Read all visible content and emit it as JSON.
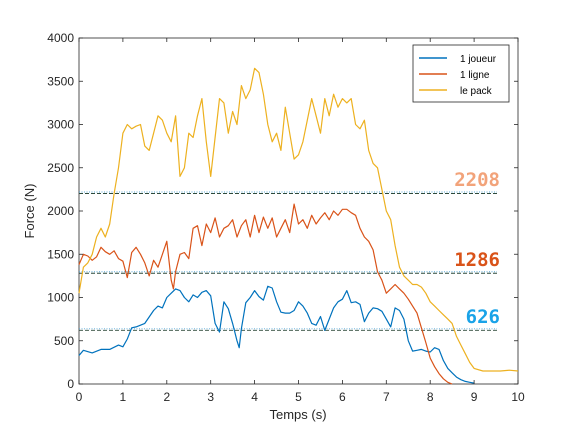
{
  "chart_data": {
    "type": "line",
    "xlabel": "Temps (s)",
    "ylabel": "Force (N)",
    "xlim": [
      0,
      10
    ],
    "ylim": [
      0,
      4000
    ],
    "xticks": [
      0,
      1,
      2,
      3,
      4,
      5,
      6,
      7,
      8,
      9,
      10
    ],
    "yticks": [
      0,
      500,
      1000,
      1500,
      2000,
      2500,
      3000,
      3500,
      4000
    ],
    "grid": false,
    "legend_position": "top-right",
    "series": [
      {
        "name": "1 joueur",
        "color": "#0072BD",
        "x": [
          0.0,
          0.1,
          0.3,
          0.5,
          0.7,
          0.9,
          1.0,
          1.1,
          1.2,
          1.3,
          1.5,
          1.7,
          1.8,
          1.9,
          2.0,
          2.1,
          2.2,
          2.3,
          2.4,
          2.5,
          2.6,
          2.7,
          2.8,
          2.9,
          3.0,
          3.1,
          3.2,
          3.3,
          3.4,
          3.5,
          3.6,
          3.65,
          3.7,
          3.8,
          3.9,
          4.0,
          4.1,
          4.2,
          4.3,
          4.4,
          4.5,
          4.6,
          4.7,
          4.8,
          4.9,
          5.0,
          5.1,
          5.2,
          5.3,
          5.4,
          5.5,
          5.6,
          5.7,
          5.8,
          5.9,
          6.0,
          6.1,
          6.2,
          6.3,
          6.4,
          6.5,
          6.6,
          6.7,
          6.8,
          6.9,
          7.0,
          7.1,
          7.2,
          7.3,
          7.4,
          7.5,
          7.6,
          7.7,
          7.8,
          7.9,
          8.0,
          8.1,
          8.2,
          8.3,
          8.4,
          8.5,
          8.6,
          8.7,
          8.8,
          8.9,
          9.0
        ],
        "y": [
          330,
          390,
          360,
          400,
          400,
          450,
          430,
          520,
          650,
          660,
          700,
          850,
          900,
          880,
          1000,
          1050,
          1100,
          1080,
          1000,
          950,
          1030,
          1000,
          1060,
          1080,
          1020,
          700,
          600,
          950,
          870,
          700,
          500,
          420,
          640,
          940,
          1000,
          1080,
          1010,
          970,
          1130,
          1110,
          950,
          830,
          820,
          820,
          850,
          950,
          900,
          820,
          700,
          680,
          780,
          620,
          750,
          880,
          950,
          980,
          1080,
          940,
          950,
          920,
          720,
          820,
          880,
          870,
          840,
          750,
          660,
          880,
          850,
          750,
          500,
          380,
          390,
          400,
          380,
          370,
          420,
          400,
          270,
          180,
          130,
          80,
          50,
          30,
          20,
          10
        ]
      },
      {
        "name": "1 ligne",
        "color": "#D95319",
        "x": [
          0.0,
          0.1,
          0.2,
          0.3,
          0.4,
          0.5,
          0.6,
          0.7,
          0.8,
          0.9,
          1.0,
          1.1,
          1.2,
          1.3,
          1.4,
          1.5,
          1.6,
          1.7,
          1.8,
          1.9,
          2.0,
          2.1,
          2.15,
          2.2,
          2.3,
          2.4,
          2.5,
          2.6,
          2.7,
          2.8,
          2.9,
          3.0,
          3.1,
          3.2,
          3.3,
          3.4,
          3.5,
          3.6,
          3.7,
          3.8,
          3.9,
          4.0,
          4.1,
          4.2,
          4.3,
          4.4,
          4.5,
          4.6,
          4.7,
          4.8,
          4.9,
          5.0,
          5.1,
          5.2,
          5.3,
          5.4,
          5.5,
          5.6,
          5.7,
          5.8,
          5.9,
          6.0,
          6.1,
          6.2,
          6.3,
          6.4,
          6.5,
          6.6,
          6.7,
          6.8,
          6.9,
          7.0,
          7.1,
          7.2,
          7.3,
          7.4,
          7.5,
          7.6,
          7.7,
          7.8,
          7.9,
          8.0,
          8.1,
          8.2,
          8.3,
          8.4,
          8.5
        ],
        "y": [
          1380,
          1500,
          1480,
          1430,
          1470,
          1580,
          1530,
          1500,
          1540,
          1450,
          1420,
          1230,
          1520,
          1580,
          1500,
          1400,
          1250,
          1430,
          1350,
          1500,
          1650,
          1200,
          1100,
          1300,
          1500,
          1520,
          1450,
          1800,
          1830,
          1600,
          1850,
          1750,
          1920,
          1700,
          1800,
          1830,
          1900,
          1700,
          1830,
          1900,
          1700,
          1950,
          1750,
          1930,
          1800,
          1920,
          1700,
          1800,
          1900,
          1750,
          2080,
          1850,
          1900,
          1800,
          1950,
          1850,
          1920,
          1980,
          1900,
          2000,
          1950,
          2020,
          2020,
          1980,
          1950,
          1800,
          1700,
          1650,
          1550,
          1300,
          1200,
          1050,
          1100,
          1150,
          1100,
          1050,
          980,
          900,
          820,
          650,
          480,
          300,
          200,
          120,
          60,
          20,
          0
        ]
      },
      {
        "name": "le pack",
        "color": "#EDB120",
        "x": [
          0.0,
          0.1,
          0.2,
          0.3,
          0.4,
          0.5,
          0.6,
          0.7,
          0.8,
          0.9,
          1.0,
          1.1,
          1.2,
          1.3,
          1.4,
          1.5,
          1.6,
          1.7,
          1.8,
          1.9,
          2.0,
          2.1,
          2.2,
          2.3,
          2.4,
          2.5,
          2.6,
          2.7,
          2.8,
          2.9,
          3.0,
          3.1,
          3.2,
          3.3,
          3.4,
          3.5,
          3.6,
          3.7,
          3.8,
          3.9,
          4.0,
          4.1,
          4.2,
          4.3,
          4.4,
          4.5,
          4.6,
          4.7,
          4.8,
          4.9,
          5.0,
          5.1,
          5.2,
          5.3,
          5.4,
          5.5,
          5.6,
          5.7,
          5.8,
          5.9,
          6.0,
          6.1,
          6.2,
          6.3,
          6.4,
          6.5,
          6.6,
          6.7,
          6.8,
          6.9,
          7.0,
          7.1,
          7.2,
          7.3,
          7.4,
          7.5,
          7.6,
          7.7,
          7.8,
          7.9,
          8.0,
          8.1,
          8.2,
          8.3,
          8.4,
          8.5,
          8.6,
          8.7,
          8.8,
          8.9,
          9.0,
          9.2,
          9.4,
          9.6,
          9.8,
          10.0
        ],
        "y": [
          1050,
          1350,
          1400,
          1500,
          1700,
          1800,
          1700,
          1850,
          2200,
          2500,
          2900,
          3000,
          2950,
          2980,
          3000,
          2750,
          2700,
          2900,
          3100,
          3050,
          2900,
          2800,
          3100,
          2400,
          2500,
          2900,
          2850,
          3100,
          3300,
          2800,
          2400,
          2850,
          3300,
          3250,
          2900,
          3150,
          3000,
          3450,
          3300,
          3400,
          3650,
          3600,
          3350,
          3000,
          2800,
          2900,
          2700,
          3200,
          2900,
          2600,
          2650,
          2800,
          3050,
          3300,
          3100,
          2900,
          3300,
          3100,
          3350,
          3200,
          3300,
          3250,
          3300,
          3000,
          2950,
          3050,
          2700,
          2550,
          2500,
          2250,
          2000,
          1900,
          1600,
          1350,
          1250,
          1200,
          1150,
          1150,
          1120,
          1050,
          950,
          900,
          850,
          800,
          750,
          700,
          550,
          450,
          350,
          250,
          180,
          150,
          150,
          150,
          160,
          150
        ]
      }
    ],
    "reference_lines": [
      {
        "value": 2208,
        "label": "2208",
        "color": "#F2A37A"
      },
      {
        "value": 1286,
        "label": "1286",
        "color": "#D95319"
      },
      {
        "value": 626,
        "label": "626",
        "color": "#1AA3E8"
      }
    ]
  }
}
